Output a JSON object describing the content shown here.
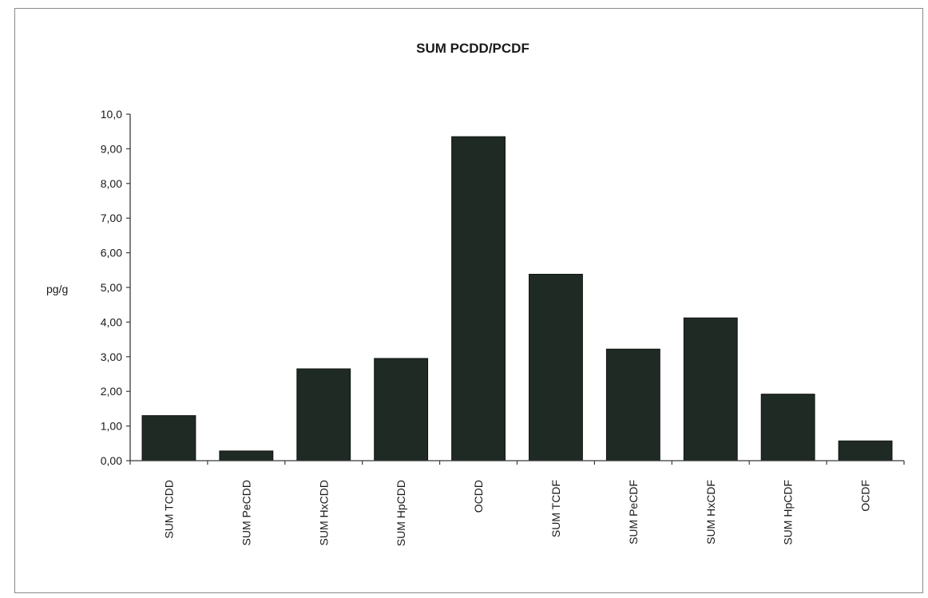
{
  "chart_data": {
    "type": "bar",
    "title": "SUM PCDD/PCDF",
    "ylabel": "pg/g",
    "xlabel": "",
    "categories": [
      "SUM TCDD",
      "SUM PeCDD",
      "SUM HxCDD",
      "SUM HpCDD",
      "OCDD",
      "SUM TCDF",
      "SUM PeCDF",
      "SUM HxCDF",
      "SUM HpCDF",
      "OCDF"
    ],
    "values": [
      1.3,
      0.28,
      2.65,
      2.95,
      9.35,
      5.38,
      3.22,
      4.12,
      1.92,
      0.57
    ],
    "ylim": [
      0,
      10
    ],
    "yticks": [
      0,
      1,
      2,
      3,
      4,
      5,
      6,
      7,
      8,
      9,
      10
    ],
    "ytick_labels": [
      "0,00",
      "1,00",
      "2,00",
      "3,00",
      "4,00",
      "5,00",
      "6,00",
      "7,00",
      "8,00",
      "9,00",
      "10,0"
    ],
    "grid": false,
    "legend": "none",
    "bar_color": "#1f2a24"
  }
}
